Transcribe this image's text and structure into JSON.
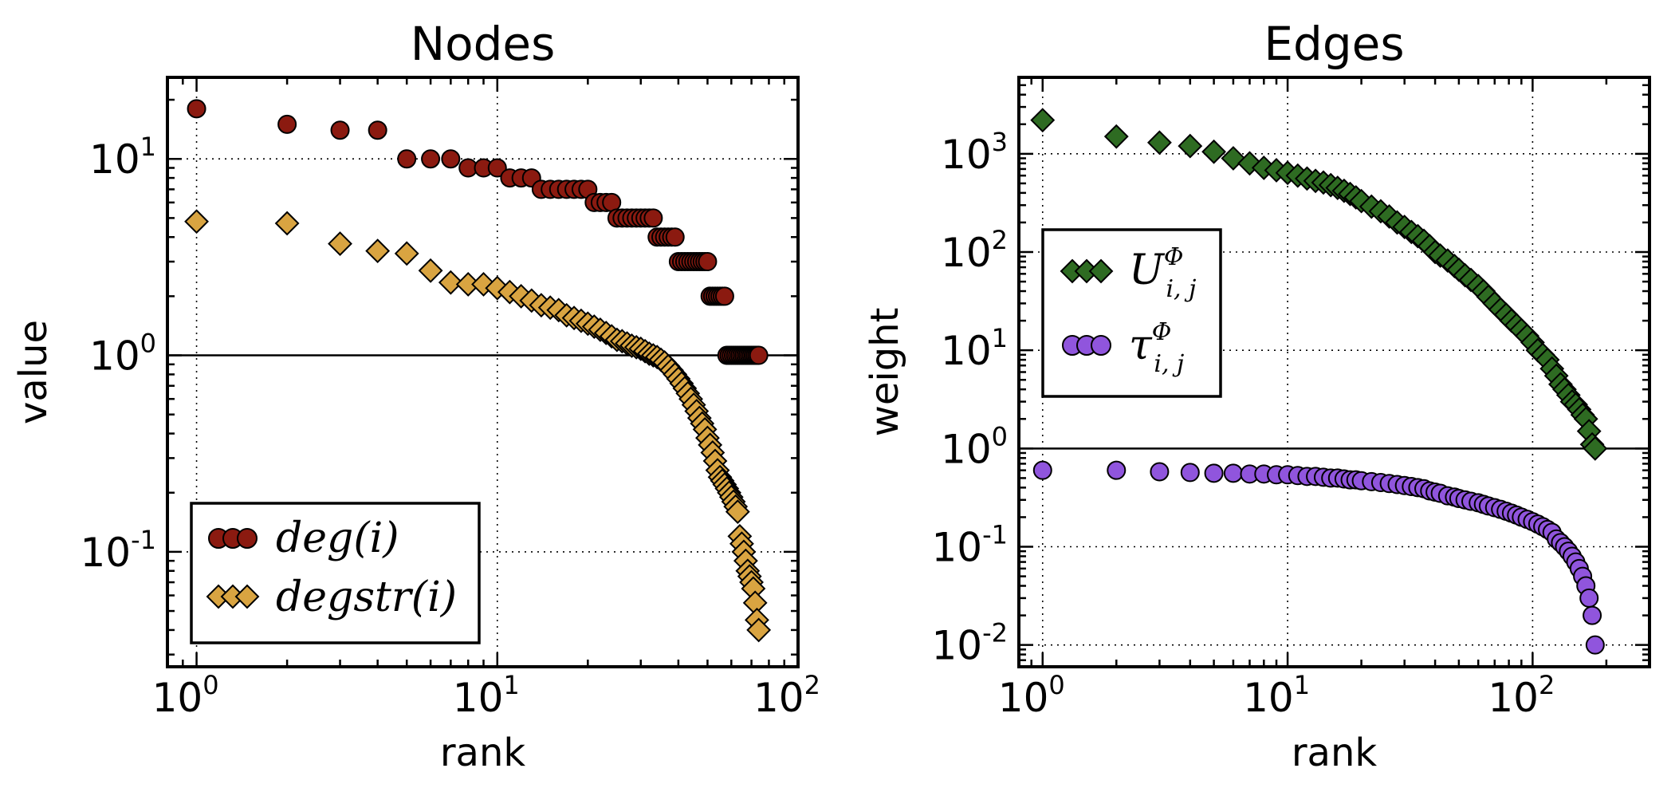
{
  "chart_data": [
    {
      "type": "scatter",
      "title": "Nodes",
      "xlabel": "rank",
      "ylabel": "value",
      "xscale": "log",
      "yscale": "log",
      "xlim": [
        0.8,
        100
      ],
      "ylim": [
        0.026,
        26
      ],
      "grid": true,
      "reference_line_y": 1,
      "legend_position": "lower-left",
      "xticks": [
        {
          "base": "10",
          "exp": "0",
          "value": 1
        },
        {
          "base": "10",
          "exp": "1",
          "value": 10
        },
        {
          "base": "10",
          "exp": "2",
          "value": 100
        }
      ],
      "yticks": [
        {
          "base": "10",
          "exp": "-1",
          "value": 0.1
        },
        {
          "base": "10",
          "exp": "0",
          "value": 1
        },
        {
          "base": "10",
          "exp": "1",
          "value": 10
        }
      ],
      "series": [
        {
          "name": "deg(i)",
          "marker": "circle",
          "color": "#8B1A10",
          "x": [
            1,
            2,
            3,
            4,
            5,
            6,
            7,
            8,
            9,
            10,
            11,
            12,
            13,
            14,
            15,
            16,
            17,
            18,
            19,
            20,
            21,
            22,
            23,
            24,
            25,
            26,
            27,
            28,
            29,
            30,
            31,
            32,
            33,
            34,
            35,
            36,
            37,
            38,
            39,
            40,
            41,
            42,
            43,
            44,
            45,
            46,
            47,
            48,
            49,
            50,
            51,
            52,
            53,
            54,
            55,
            56,
            57,
            58,
            59,
            60,
            61,
            62,
            63,
            64,
            65,
            66,
            67,
            68,
            69,
            70,
            71,
            72,
            73,
            74
          ],
          "y": [
            18,
            15,
            14,
            14,
            10,
            10,
            10,
            9,
            9,
            9,
            8,
            8,
            8,
            7,
            7,
            7,
            7,
            7,
            7,
            7,
            6,
            6,
            6,
            6,
            5,
            5,
            5,
            5,
            5,
            5,
            5,
            5,
            5,
            4,
            4,
            4,
            4,
            4,
            4,
            3,
            3,
            3,
            3,
            3,
            3,
            3,
            3,
            3,
            3,
            3,
            2,
            2,
            2,
            2,
            2,
            2,
            2,
            1,
            1,
            1,
            1,
            1,
            1,
            1,
            1,
            1,
            1,
            1,
            1,
            1,
            1,
            1,
            1,
            1
          ]
        },
        {
          "name": "degstr(i)",
          "marker": "diamond",
          "color": "#D9A441",
          "x": [
            1,
            2,
            3,
            4,
            5,
            6,
            7,
            8,
            9,
            10,
            11,
            12,
            13,
            14,
            15,
            16,
            17,
            18,
            19,
            20,
            21,
            22,
            23,
            24,
            25,
            26,
            27,
            28,
            29,
            30,
            31,
            32,
            33,
            34,
            35,
            36,
            37,
            38,
            39,
            40,
            41,
            42,
            43,
            44,
            45,
            46,
            47,
            48,
            49,
            50,
            51,
            52,
            53,
            54,
            55,
            56,
            57,
            58,
            59,
            60,
            61,
            62,
            63,
            64,
            65,
            66,
            67,
            68,
            69,
            70,
            71,
            72,
            73,
            74
          ],
          "y": [
            4.8,
            4.7,
            3.7,
            3.4,
            3.3,
            2.7,
            2.35,
            2.3,
            2.3,
            2.2,
            2.1,
            2.0,
            1.9,
            1.8,
            1.75,
            1.7,
            1.6,
            1.55,
            1.5,
            1.45,
            1.4,
            1.35,
            1.3,
            1.25,
            1.2,
            1.18,
            1.15,
            1.12,
            1.1,
            1.08,
            1.05,
            1.02,
            1.0,
            0.98,
            0.95,
            0.92,
            0.88,
            0.84,
            0.8,
            0.76,
            0.72,
            0.68,
            0.64,
            0.6,
            0.56,
            0.52,
            0.48,
            0.45,
            0.42,
            0.38,
            0.35,
            0.32,
            0.29,
            0.26,
            0.24,
            0.23,
            0.22,
            0.21,
            0.2,
            0.19,
            0.18,
            0.17,
            0.16,
            0.12,
            0.11,
            0.1,
            0.09,
            0.08,
            0.075,
            0.07,
            0.065,
            0.055,
            0.045,
            0.04
          ]
        }
      ]
    },
    {
      "type": "scatter",
      "title": "Edges",
      "xlabel": "rank",
      "ylabel": "weight",
      "xscale": "log",
      "yscale": "log",
      "xlim": [
        0.8,
        300
      ],
      "ylim": [
        0.006,
        6000
      ],
      "grid": true,
      "reference_line_y": 1,
      "legend_position": "upper-left",
      "xticks": [
        {
          "base": "10",
          "exp": "0",
          "value": 1
        },
        {
          "base": "10",
          "exp": "1",
          "value": 10
        },
        {
          "base": "10",
          "exp": "2",
          "value": 100
        }
      ],
      "yticks": [
        {
          "base": "10",
          "exp": "-2",
          "value": 0.01
        },
        {
          "base": "10",
          "exp": "-1",
          "value": 0.1
        },
        {
          "base": "10",
          "exp": "0",
          "value": 1
        },
        {
          "base": "10",
          "exp": "1",
          "value": 10
        },
        {
          "base": "10",
          "exp": "2",
          "value": 100
        },
        {
          "base": "10",
          "exp": "3",
          "value": 1000
        }
      ],
      "series": [
        {
          "name": "U^Φ_{i,j}",
          "marker": "diamond",
          "color": "#2E6B22",
          "x": [
            1,
            2,
            3,
            4,
            5,
            6,
            7,
            8,
            9,
            10,
            11,
            12,
            13,
            14,
            15,
            16,
            17,
            18,
            19,
            20,
            22,
            24,
            26,
            28,
            30,
            32,
            34,
            36,
            38,
            40,
            42,
            45,
            48,
            50,
            53,
            56,
            60,
            63,
            66,
            70,
            74,
            78,
            82,
            86,
            90,
            95,
            100,
            105,
            110,
            115,
            120,
            125,
            130,
            135,
            140,
            145,
            150,
            155,
            160,
            165,
            170,
            175,
            180
          ],
          "y": [
            2200,
            1500,
            1300,
            1200,
            1050,
            900,
            800,
            720,
            680,
            640,
            600,
            560,
            530,
            510,
            480,
            450,
            420,
            390,
            360,
            330,
            290,
            260,
            230,
            200,
            180,
            160,
            145,
            130,
            115,
            100,
            92,
            82,
            72,
            66,
            58,
            52,
            45,
            40,
            35,
            30,
            26,
            23,
            20,
            18,
            16,
            14,
            12,
            10,
            9,
            8,
            6.5,
            5.5,
            4.5,
            4,
            3.5,
            3,
            2.8,
            2.5,
            2.2,
            2,
            1.5,
            1.1,
            1.0
          ]
        },
        {
          "name": "τ^Φ_{i,j}",
          "marker": "circle",
          "color": "#9055DD",
          "x": [
            1,
            2,
            3,
            4,
            5,
            6,
            7,
            8,
            9,
            10,
            11,
            12,
            13,
            14,
            15,
            16,
            17,
            18,
            19,
            20,
            22,
            24,
            26,
            28,
            30,
            32,
            34,
            36,
            38,
            40,
            42,
            45,
            48,
            50,
            53,
            56,
            60,
            63,
            66,
            70,
            74,
            78,
            82,
            86,
            90,
            95,
            100,
            105,
            110,
            115,
            120,
            125,
            130,
            135,
            140,
            145,
            150,
            155,
            160,
            165,
            170,
            175,
            180
          ],
          "y": [
            0.6,
            0.6,
            0.58,
            0.57,
            0.56,
            0.56,
            0.55,
            0.55,
            0.54,
            0.54,
            0.53,
            0.52,
            0.52,
            0.51,
            0.5,
            0.5,
            0.49,
            0.48,
            0.48,
            0.47,
            0.46,
            0.45,
            0.44,
            0.43,
            0.42,
            0.41,
            0.4,
            0.39,
            0.37,
            0.36,
            0.35,
            0.33,
            0.32,
            0.31,
            0.3,
            0.29,
            0.28,
            0.27,
            0.26,
            0.25,
            0.24,
            0.23,
            0.22,
            0.21,
            0.2,
            0.19,
            0.18,
            0.17,
            0.16,
            0.15,
            0.14,
            0.12,
            0.11,
            0.1,
            0.09,
            0.08,
            0.07,
            0.06,
            0.05,
            0.04,
            0.03,
            0.02,
            0.01
          ]
        }
      ]
    }
  ]
}
